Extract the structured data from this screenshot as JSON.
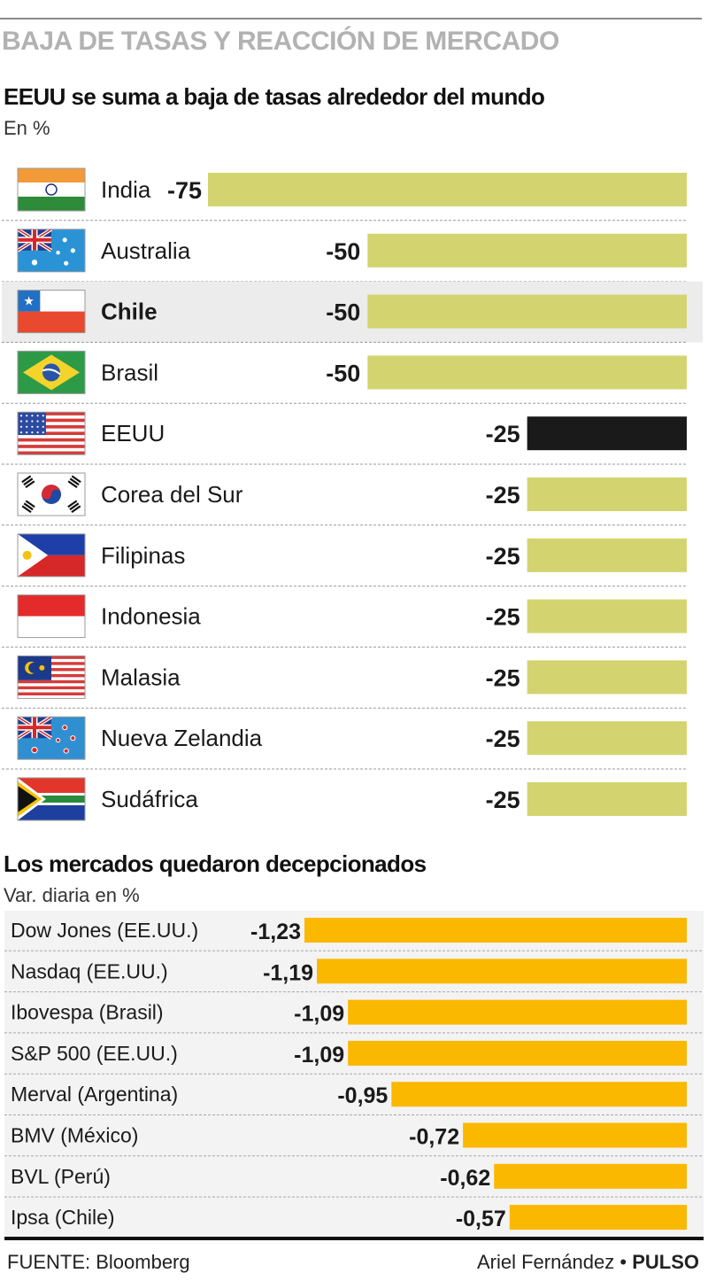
{
  "kicker": "BAJA DE TASAS Y REACCIÓN DE MERCADO",
  "section1": {
    "title": "EEUU se suma a  baja de tasas alrededor del mundo",
    "unit": "En %"
  },
  "section2": {
    "title": "Los mercados quedaron decepcionados",
    "unit": "Var. diaria en %"
  },
  "footer": {
    "source": "FUENTE: Bloomberg",
    "author": "Ariel Fernández •",
    "brand": "PULSO"
  },
  "colors": {
    "rate_bar": "#d3d46f",
    "highlight_bar": "#1a1a1a",
    "market_bar": "#fbb800",
    "highlight_row_bg": "#ececec"
  },
  "chart_data": [
    {
      "type": "bar",
      "orientation": "horizontal",
      "categories": [
        "India",
        "Australia",
        "Chile",
        "Brasil",
        "EEUU",
        "Corea del Sur",
        "Filipinas",
        "Indonesia",
        "Malasia",
        "Nueva Zelandia",
        "Sudáfrica"
      ],
      "values": [
        -75,
        -50,
        -50,
        -50,
        -25,
        -25,
        -25,
        -25,
        -25,
        -25,
        -25
      ],
      "labels": [
        "-75",
        "-50",
        "-50",
        "-50",
        "-25",
        "-25",
        "-25",
        "-25",
        "-25",
        "-25",
        "-25"
      ],
      "flags": [
        "india-flag-icon",
        "australia-flag-icon",
        "chile-flag-icon",
        "brazil-flag-icon",
        "usa-flag-icon",
        "south-korea-flag-icon",
        "philippines-flag-icon",
        "indonesia-flag-icon",
        "malaysia-flag-icon",
        "new-zealand-flag-icon",
        "south-africa-flag-icon"
      ],
      "highlight_row": "Chile",
      "highlight_bar": "EEUU",
      "title": "EEUU se suma a  baja de tasas alrededor del mundo",
      "ylabel": "En %",
      "xlim": [
        -75,
        0
      ]
    },
    {
      "type": "bar",
      "orientation": "horizontal",
      "categories": [
        "Dow Jones (EE.UU.)",
        "Nasdaq (EE.UU.)",
        "Ibovespa (Brasil)",
        "S&P 500 (EE.UU.)",
        "Merval (Argentina)",
        "BMV (México)",
        "BVL (Perú)",
        "Ipsa (Chile)"
      ],
      "values": [
        -1.23,
        -1.19,
        -1.09,
        -1.09,
        -0.95,
        -0.72,
        -0.62,
        -0.57
      ],
      "labels": [
        "-1,23",
        "-1,19",
        "-1,09",
        "-1,09",
        "-0,95",
        "-0,72",
        "-0,62",
        "-0,57"
      ],
      "title": "Los mercados quedaron decepcionados",
      "ylabel": "Var. diaria en %",
      "xlim": [
        -1.23,
        0
      ]
    }
  ]
}
